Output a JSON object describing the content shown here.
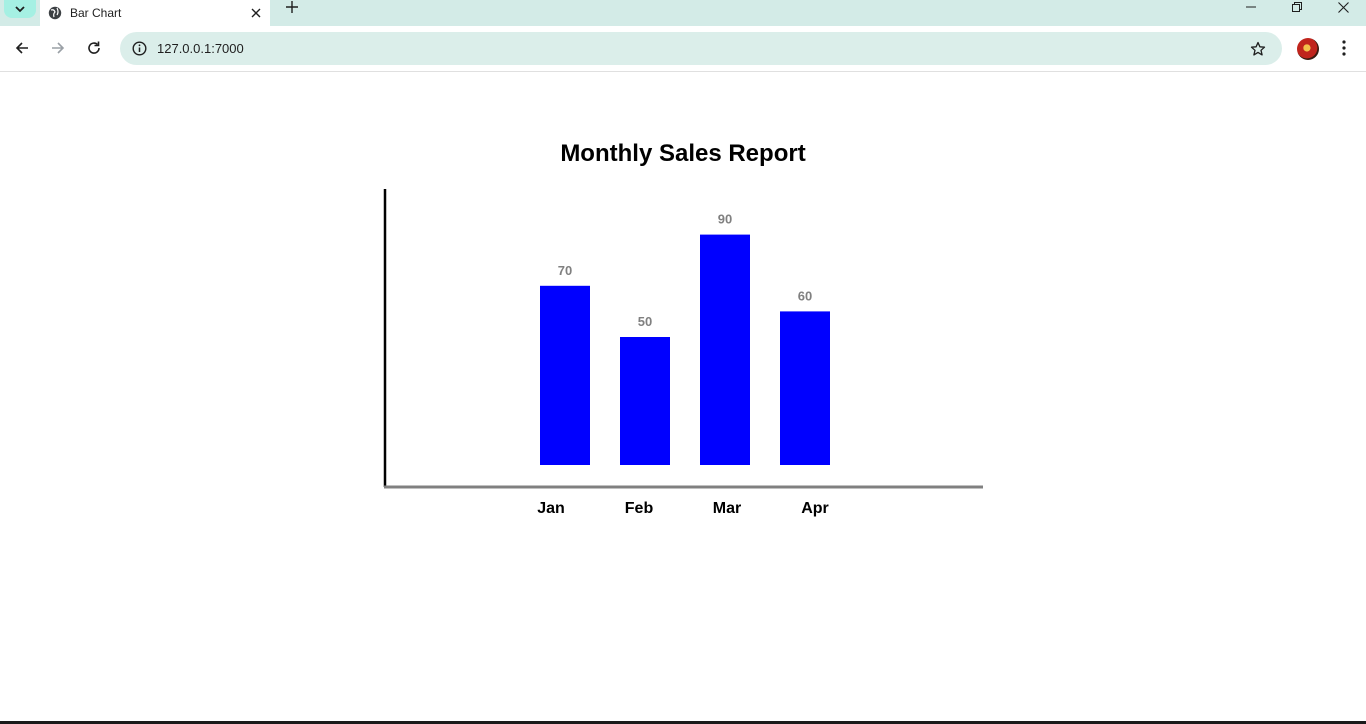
{
  "browser": {
    "tab_title": "Bar Chart",
    "url": "127.0.0.1:7000",
    "icons": {
      "tab_search": "chevron-down-icon",
      "favicon": "globe-icon",
      "tab_close": "close-icon",
      "new_tab": "plus-icon",
      "minimize": "minimize-icon",
      "restore": "restore-icon",
      "close_window": "close-icon",
      "back": "arrow-left-icon",
      "forward": "arrow-right-icon",
      "reload": "reload-icon",
      "site_info": "info-icon",
      "bookmark": "star-icon",
      "menu": "more-vert-icon"
    }
  },
  "chart_data": {
    "type": "bar",
    "title": "Monthly Sales Report",
    "categories": [
      "Jan",
      "Feb",
      "Mar",
      "Apr"
    ],
    "values": [
      70,
      50,
      90,
      60
    ],
    "data_labels": [
      "70",
      "50",
      "90",
      "60"
    ],
    "xlabel": "",
    "ylabel": "",
    "ylim": [
      0,
      100
    ],
    "grid": false,
    "legend": "none",
    "bar_color": "#0000ff",
    "value_label_color": "#808080",
    "x_axis_color": "#808080",
    "y_axis_color": "#000000"
  }
}
